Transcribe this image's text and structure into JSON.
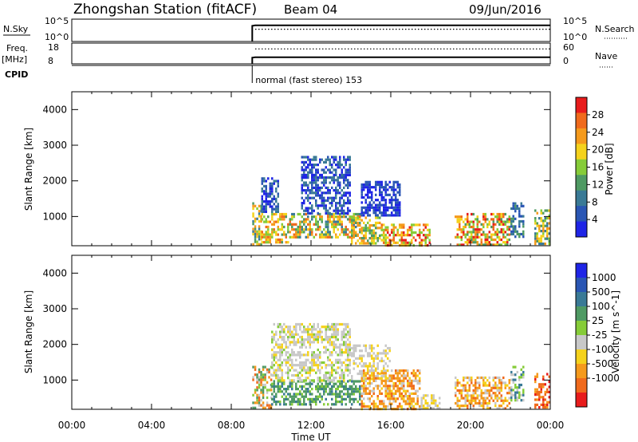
{
  "header": {
    "station": "Zhongshan Station (fitACF)",
    "beam": "Beam 04",
    "date": "09/Jun/2016"
  },
  "colors": {
    "power": [
      "#1f25e6",
      "#2a56b4",
      "#3a7a96",
      "#4f9a63",
      "#86cc38",
      "#f5d21c",
      "#f59a1c",
      "#f06a1c",
      "#e81c1c"
    ],
    "velocity": [
      "#1f25e6",
      "#2a56b4",
      "#3a7a96",
      "#4f9a63",
      "#86cc38",
      "#c8c8c8",
      "#f5d21c",
      "#f59a1c",
      "#f06a1c",
      "#e81c1c"
    ]
  },
  "chart_data": [
    {
      "type": "line",
      "panel": "nsky",
      "labels": {
        "left": "N.Sky",
        "right": "N.Search"
      },
      "y_ticks_left": [
        "10^5",
        "10^0"
      ],
      "y_ticks_right": [
        "10^5",
        "10^0"
      ],
      "xlim": [
        0,
        24
      ],
      "series": [
        {
          "style": "solid",
          "x": [
            9.05,
            9.05,
            9.2,
            24
          ],
          "y": [
            0,
            0.7,
            0.72,
            0.72
          ]
        },
        {
          "style": "dotted",
          "x": [
            9.2,
            24
          ],
          "y": [
            0.55,
            0.55
          ]
        }
      ]
    },
    {
      "type": "line",
      "panel": "freq",
      "labels": {
        "left": "Freq.",
        "left_unit": "[MHz]",
        "right": "Nave"
      },
      "y_ticks_left": [
        "18",
        "8"
      ],
      "y_ticks_right": [
        "60",
        "0"
      ],
      "xlim": [
        0,
        24
      ],
      "series": [
        {
          "style": "solid",
          "x": [
            9.05,
            9.05,
            9.2,
            24
          ],
          "y": [
            0,
            0.3,
            0.32,
            0.32
          ]
        },
        {
          "style": "dotted",
          "x": [
            9.2,
            24
          ],
          "y": [
            0.72,
            0.72
          ]
        }
      ]
    },
    {
      "type": "text",
      "panel": "cpid",
      "label": "CPID",
      "entries": [
        {
          "x": 9.05,
          "text": "normal (fast stereo) 153"
        }
      ]
    },
    {
      "type": "heatmap",
      "panel": "power",
      "ylabel": "Slant Range [km]",
      "ylim": [
        180,
        4500
      ],
      "y_ticks": [
        "1000",
        "2000",
        "3000",
        "4000"
      ],
      "xlim": [
        0,
        24
      ],
      "colorbar": {
        "label": "Power [dB]",
        "ticks": [
          "4",
          "8",
          "12",
          "16",
          "20",
          "24",
          "28"
        ]
      },
      "regions": [
        {
          "t0": 9.05,
          "t1": 9.5,
          "r0": 200,
          "r1": 1400,
          "levels": [
            2,
            3,
            4,
            5,
            6
          ]
        },
        {
          "t0": 9.5,
          "t1": 11.0,
          "r0": 250,
          "r1": 1100,
          "levels": [
            3,
            4,
            5,
            6,
            7
          ]
        },
        {
          "t0": 9.5,
          "t1": 10.4,
          "r0": 1100,
          "r1": 2100,
          "levels": [
            0,
            1,
            2
          ]
        },
        {
          "t0": 11.0,
          "t1": 14.5,
          "r0": 400,
          "r1": 1100,
          "levels": [
            2,
            3,
            4,
            5,
            6,
            7
          ]
        },
        {
          "t0": 11.5,
          "t1": 14.0,
          "r0": 1100,
          "r1": 2700,
          "levels": [
            0,
            1,
            2
          ]
        },
        {
          "t0": 14.0,
          "t1": 15.5,
          "r0": 250,
          "r1": 1000,
          "levels": [
            3,
            4,
            5,
            6
          ]
        },
        {
          "t0": 14.5,
          "t1": 16.5,
          "r0": 1000,
          "r1": 2000,
          "levels": [
            0,
            1
          ]
        },
        {
          "t0": 15.5,
          "t1": 18.0,
          "r0": 200,
          "r1": 800,
          "levels": [
            4,
            5,
            6,
            7,
            8
          ]
        },
        {
          "t0": 19.2,
          "t1": 22.0,
          "r0": 200,
          "r1": 1100,
          "levels": [
            3,
            4,
            5,
            6,
            7,
            8
          ]
        },
        {
          "t0": 22.0,
          "t1": 22.7,
          "r0": 400,
          "r1": 1400,
          "levels": [
            1,
            2,
            3
          ]
        },
        {
          "t0": 23.2,
          "t1": 24.0,
          "r0": 250,
          "r1": 1200,
          "levels": [
            2,
            3,
            4,
            5,
            6
          ]
        }
      ]
    },
    {
      "type": "heatmap",
      "panel": "velocity",
      "ylabel": "Slant Range [km]",
      "xlabel": "Time UT",
      "ylim": [
        180,
        4500
      ],
      "y_ticks": [
        "1000",
        "2000",
        "3000",
        "4000"
      ],
      "x_ticks": [
        "00:00",
        "04:00",
        "08:00",
        "12:00",
        "16:00",
        "20:00",
        "00:00"
      ],
      "xlim": [
        0,
        24
      ],
      "colorbar": {
        "label": "Velocity [m s^-1]",
        "ticks": [
          "1000",
          "500",
          "100",
          "25",
          "-25",
          "-100",
          "-500",
          "-1000"
        ]
      },
      "regions": [
        {
          "t0": 9.05,
          "t1": 10.0,
          "r0": 200,
          "r1": 1400,
          "levels": [
            3,
            4,
            5,
            7,
            8
          ]
        },
        {
          "t0": 10.0,
          "t1": 14.5,
          "r0": 300,
          "r1": 1000,
          "levels": [
            2,
            3,
            3,
            3,
            4
          ]
        },
        {
          "t0": 10.0,
          "t1": 14.0,
          "r0": 1000,
          "r1": 2600,
          "levels": [
            5,
            5,
            5,
            4,
            6
          ]
        },
        {
          "t0": 14.0,
          "t1": 16.0,
          "r0": 1000,
          "r1": 2000,
          "levels": [
            5,
            5,
            6
          ]
        },
        {
          "t0": 14.5,
          "t1": 17.5,
          "r0": 200,
          "r1": 1300,
          "levels": [
            6,
            7,
            7,
            8,
            5
          ]
        },
        {
          "t0": 17.5,
          "t1": 18.5,
          "r0": 200,
          "r1": 600,
          "levels": [
            5,
            5,
            6
          ]
        },
        {
          "t0": 19.2,
          "t1": 22.0,
          "r0": 200,
          "r1": 1100,
          "levels": [
            6,
            7,
            7,
            8,
            5
          ]
        },
        {
          "t0": 22.0,
          "t1": 22.7,
          "r0": 400,
          "r1": 1400,
          "levels": [
            4,
            5,
            2
          ]
        },
        {
          "t0": 23.2,
          "t1": 24.0,
          "r0": 250,
          "r1": 1200,
          "levels": [
            7,
            8,
            8,
            9
          ]
        }
      ]
    }
  ]
}
